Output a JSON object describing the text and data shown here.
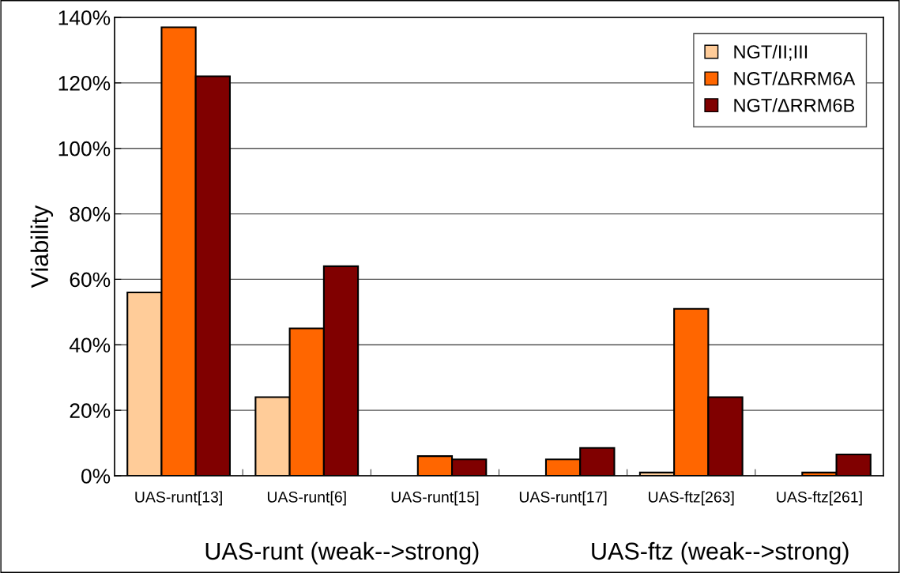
{
  "chart_data": {
    "type": "bar",
    "ylabel": "Viability",
    "categories": [
      "UAS-runt[13]",
      "UAS-runt[6]",
      "UAS-runt[15]",
      "UAS-runt[17]",
      "UAS-ftz[263]",
      "UAS-ftz[261]"
    ],
    "series": [
      {
        "name": "NGT/II;III",
        "color": "#ffcc99",
        "values": [
          56,
          24,
          null,
          null,
          1,
          null
        ]
      },
      {
        "name": "NGT/ΔRRM6A",
        "color": "#ff6600",
        "values": [
          137,
          45,
          6,
          5,
          51,
          1
        ]
      },
      {
        "name": "NGT/ΔRRM6B",
        "color": "#800000",
        "values": [
          122,
          64,
          5,
          8.5,
          24,
          6.5
        ]
      }
    ],
    "ylim": [
      0,
      140
    ],
    "yticks": [
      {
        "value": 0,
        "label": "0%"
      },
      {
        "value": 20,
        "label": "20%"
      },
      {
        "value": 40,
        "label": "40%"
      },
      {
        "value": 60,
        "label": "60%"
      },
      {
        "value": 80,
        "label": "80%"
      },
      {
        "value": 100,
        "label": "100%"
      },
      {
        "value": 120,
        "label": "120%"
      },
      {
        "value": 140,
        "label": "140%"
      }
    ],
    "grid": "y",
    "legend": "top right",
    "annotations": [
      "UAS-runt (weak-->strong)",
      "UAS-ftz (weak-->strong)"
    ]
  }
}
